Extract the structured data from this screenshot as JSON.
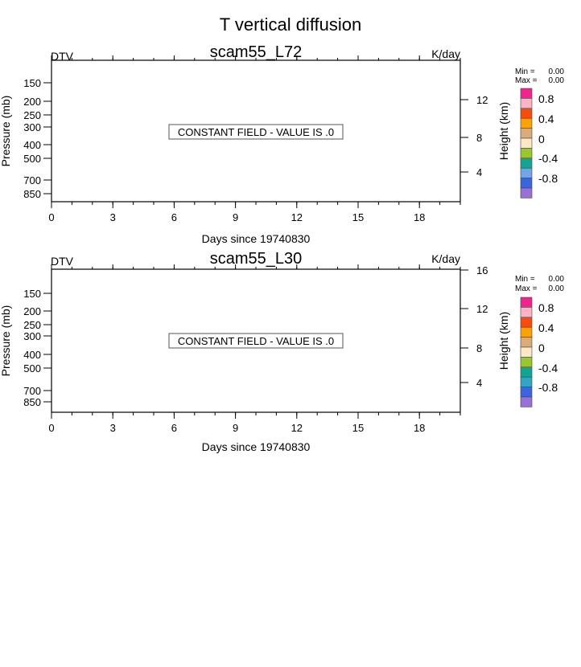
{
  "figure": {
    "title": "T vertical diffusion"
  },
  "chart_data": [
    {
      "type": "heatmap",
      "title": "scam55_L72",
      "variable": "DTV",
      "units": "K/day",
      "xlabel": "Days since 19740830",
      "ylabel_left": "Pressure (mb)",
      "ylabel_right": "Height (km)",
      "x_ticks": [
        "0",
        "3",
        "6",
        "9",
        "12",
        "15",
        "18"
      ],
      "xlim": [
        0,
        20
      ],
      "pressure_ticks": [
        "150",
        "200",
        "250",
        "300",
        "400",
        "500",
        "700",
        "850"
      ],
      "height_ticks": [
        "12",
        "8",
        "4"
      ],
      "annotation": "CONSTANT FIELD - VALUE IS .0",
      "stats": {
        "min_label": "Min =",
        "min_value": "0.00",
        "max_label": "Max =",
        "max_value": "0.00"
      },
      "colorbar": {
        "labels": [
          "0.8",
          "0.4",
          "0",
          "-0.4",
          "-0.8"
        ],
        "colors": [
          "#f0248c",
          "#fcb4c4",
          "#f84c0c",
          "#f8a408",
          "#d8ac7c",
          "#fce8c4",
          "#98c82c",
          "#14a494",
          "#74a4e4",
          "#3c64dc",
          "#9870d8"
        ]
      }
    },
    {
      "type": "heatmap",
      "title": "scam55_L30",
      "variable": "DTV",
      "units": "K/day",
      "xlabel": "Days since 19740830",
      "ylabel_left": "Pressure (mb)",
      "ylabel_right": "Height (km)",
      "x_ticks": [
        "0",
        "3",
        "6",
        "9",
        "12",
        "15",
        "18"
      ],
      "xlim": [
        0,
        20
      ],
      "pressure_ticks": [
        "150",
        "200",
        "250",
        "300",
        "400",
        "500",
        "700",
        "850"
      ],
      "height_ticks": [
        "16",
        "12",
        "8",
        "4"
      ],
      "annotation": "CONSTANT FIELD - VALUE IS .0",
      "stats": {
        "min_label": "Min =",
        "min_value": "0.00",
        "max_label": "Max =",
        "max_value": "0.00"
      },
      "colorbar": {
        "labels": [
          "0.8",
          "0.4",
          "0",
          "-0.4",
          "-0.8"
        ],
        "colors": [
          "#f0248c",
          "#fcb4c4",
          "#f84c0c",
          "#f8a408",
          "#d8ac7c",
          "#fce8c4",
          "#98c82c",
          "#14a494",
          "#34a4c4",
          "#3c64dc",
          "#9870d8"
        ]
      }
    }
  ]
}
